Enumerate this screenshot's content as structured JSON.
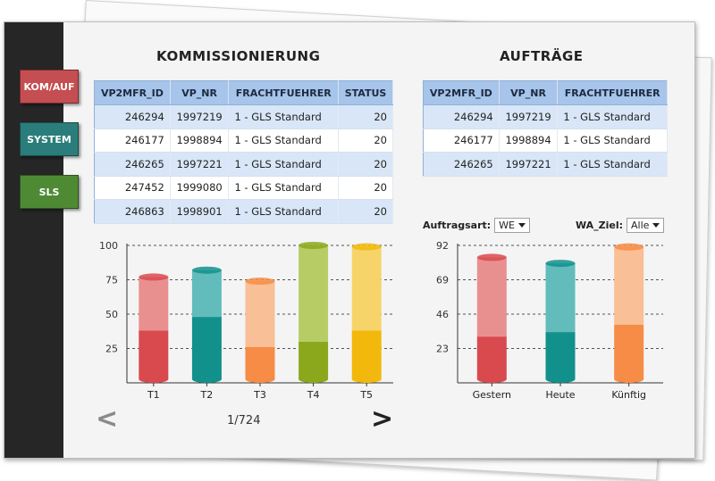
{
  "sidebar": {
    "buttons": [
      {
        "label": "KOM/AUF",
        "color": "#c44e52"
      },
      {
        "label": "SYSTEM",
        "color": "#2a7d7a"
      },
      {
        "label": "SLS",
        "color": "#4e8a33"
      }
    ]
  },
  "kommissionierung": {
    "title": "KOMMISSIONIERUNG",
    "columns": [
      "VP2MFR_ID",
      "VP_NR",
      "FRACHTFUEHRER",
      "STATUS"
    ],
    "rows": [
      [
        "246294",
        "1997219",
        "1 - GLS Standard",
        "20"
      ],
      [
        "246177",
        "1998894",
        "1 - GLS Standard",
        "20"
      ],
      [
        "246265",
        "1997221",
        "1 - GLS Standard",
        "20"
      ],
      [
        "247452",
        "1999080",
        "1 - GLS Standard",
        "20"
      ],
      [
        "246863",
        "1998901",
        "1 - GLS Standard",
        "20"
      ]
    ]
  },
  "auftraege": {
    "title": "AUFTRÄGE",
    "columns": [
      "VP2MFR_ID",
      "VP_NR",
      "FRACHTFUEHRER"
    ],
    "rows": [
      [
        "246294",
        "1997219",
        "1 - GLS Standard"
      ],
      [
        "246177",
        "1998894",
        "1 - GLS Standard"
      ],
      [
        "246265",
        "1997221",
        "1 - GLS Standard"
      ]
    ]
  },
  "filters": {
    "auftragsart_label": "Auftragsart:",
    "auftragsart_value": "WE",
    "wa_ziel_label": "WA_Ziel:",
    "wa_ziel_value": "Alle"
  },
  "pager": {
    "prev": "<",
    "next": ">",
    "text": "1/724"
  },
  "chart_data": [
    {
      "type": "bar",
      "categories": [
        "T1",
        "T2",
        "T3",
        "T4",
        "T5"
      ],
      "series": [
        {
          "values": [
            38,
            48,
            26,
            30,
            38
          ]
        },
        {
          "values": [
            77,
            82,
            74,
            100,
            99
          ]
        }
      ],
      "colors": [
        [
          "#d94a4f",
          "#e89090"
        ],
        [
          "#12908c",
          "#62bcbb"
        ],
        [
          "#f68c45",
          "#f9bf96"
        ],
        [
          "#8ba81c",
          "#b8cc66"
        ],
        [
          "#f2b90c",
          "#f7d46a"
        ]
      ],
      "yticks": [
        25,
        50,
        75,
        100
      ],
      "ylim": [
        0,
        100
      ],
      "grid": "dashed-horizontal"
    },
    {
      "type": "bar",
      "categories": [
        "Gestern",
        "Heute",
        "Künftig"
      ],
      "series": [
        {
          "values": [
            31,
            34,
            39
          ]
        },
        {
          "values": [
            84,
            80,
            91
          ]
        }
      ],
      "colors": [
        [
          "#d94a4f",
          "#e89090"
        ],
        [
          "#12908c",
          "#62bcbb"
        ],
        [
          "#f68c45",
          "#f9bf96"
        ]
      ],
      "yticks": [
        23,
        46,
        69,
        92
      ],
      "ylim": [
        0,
        92
      ],
      "grid": "dashed-horizontal"
    }
  ]
}
